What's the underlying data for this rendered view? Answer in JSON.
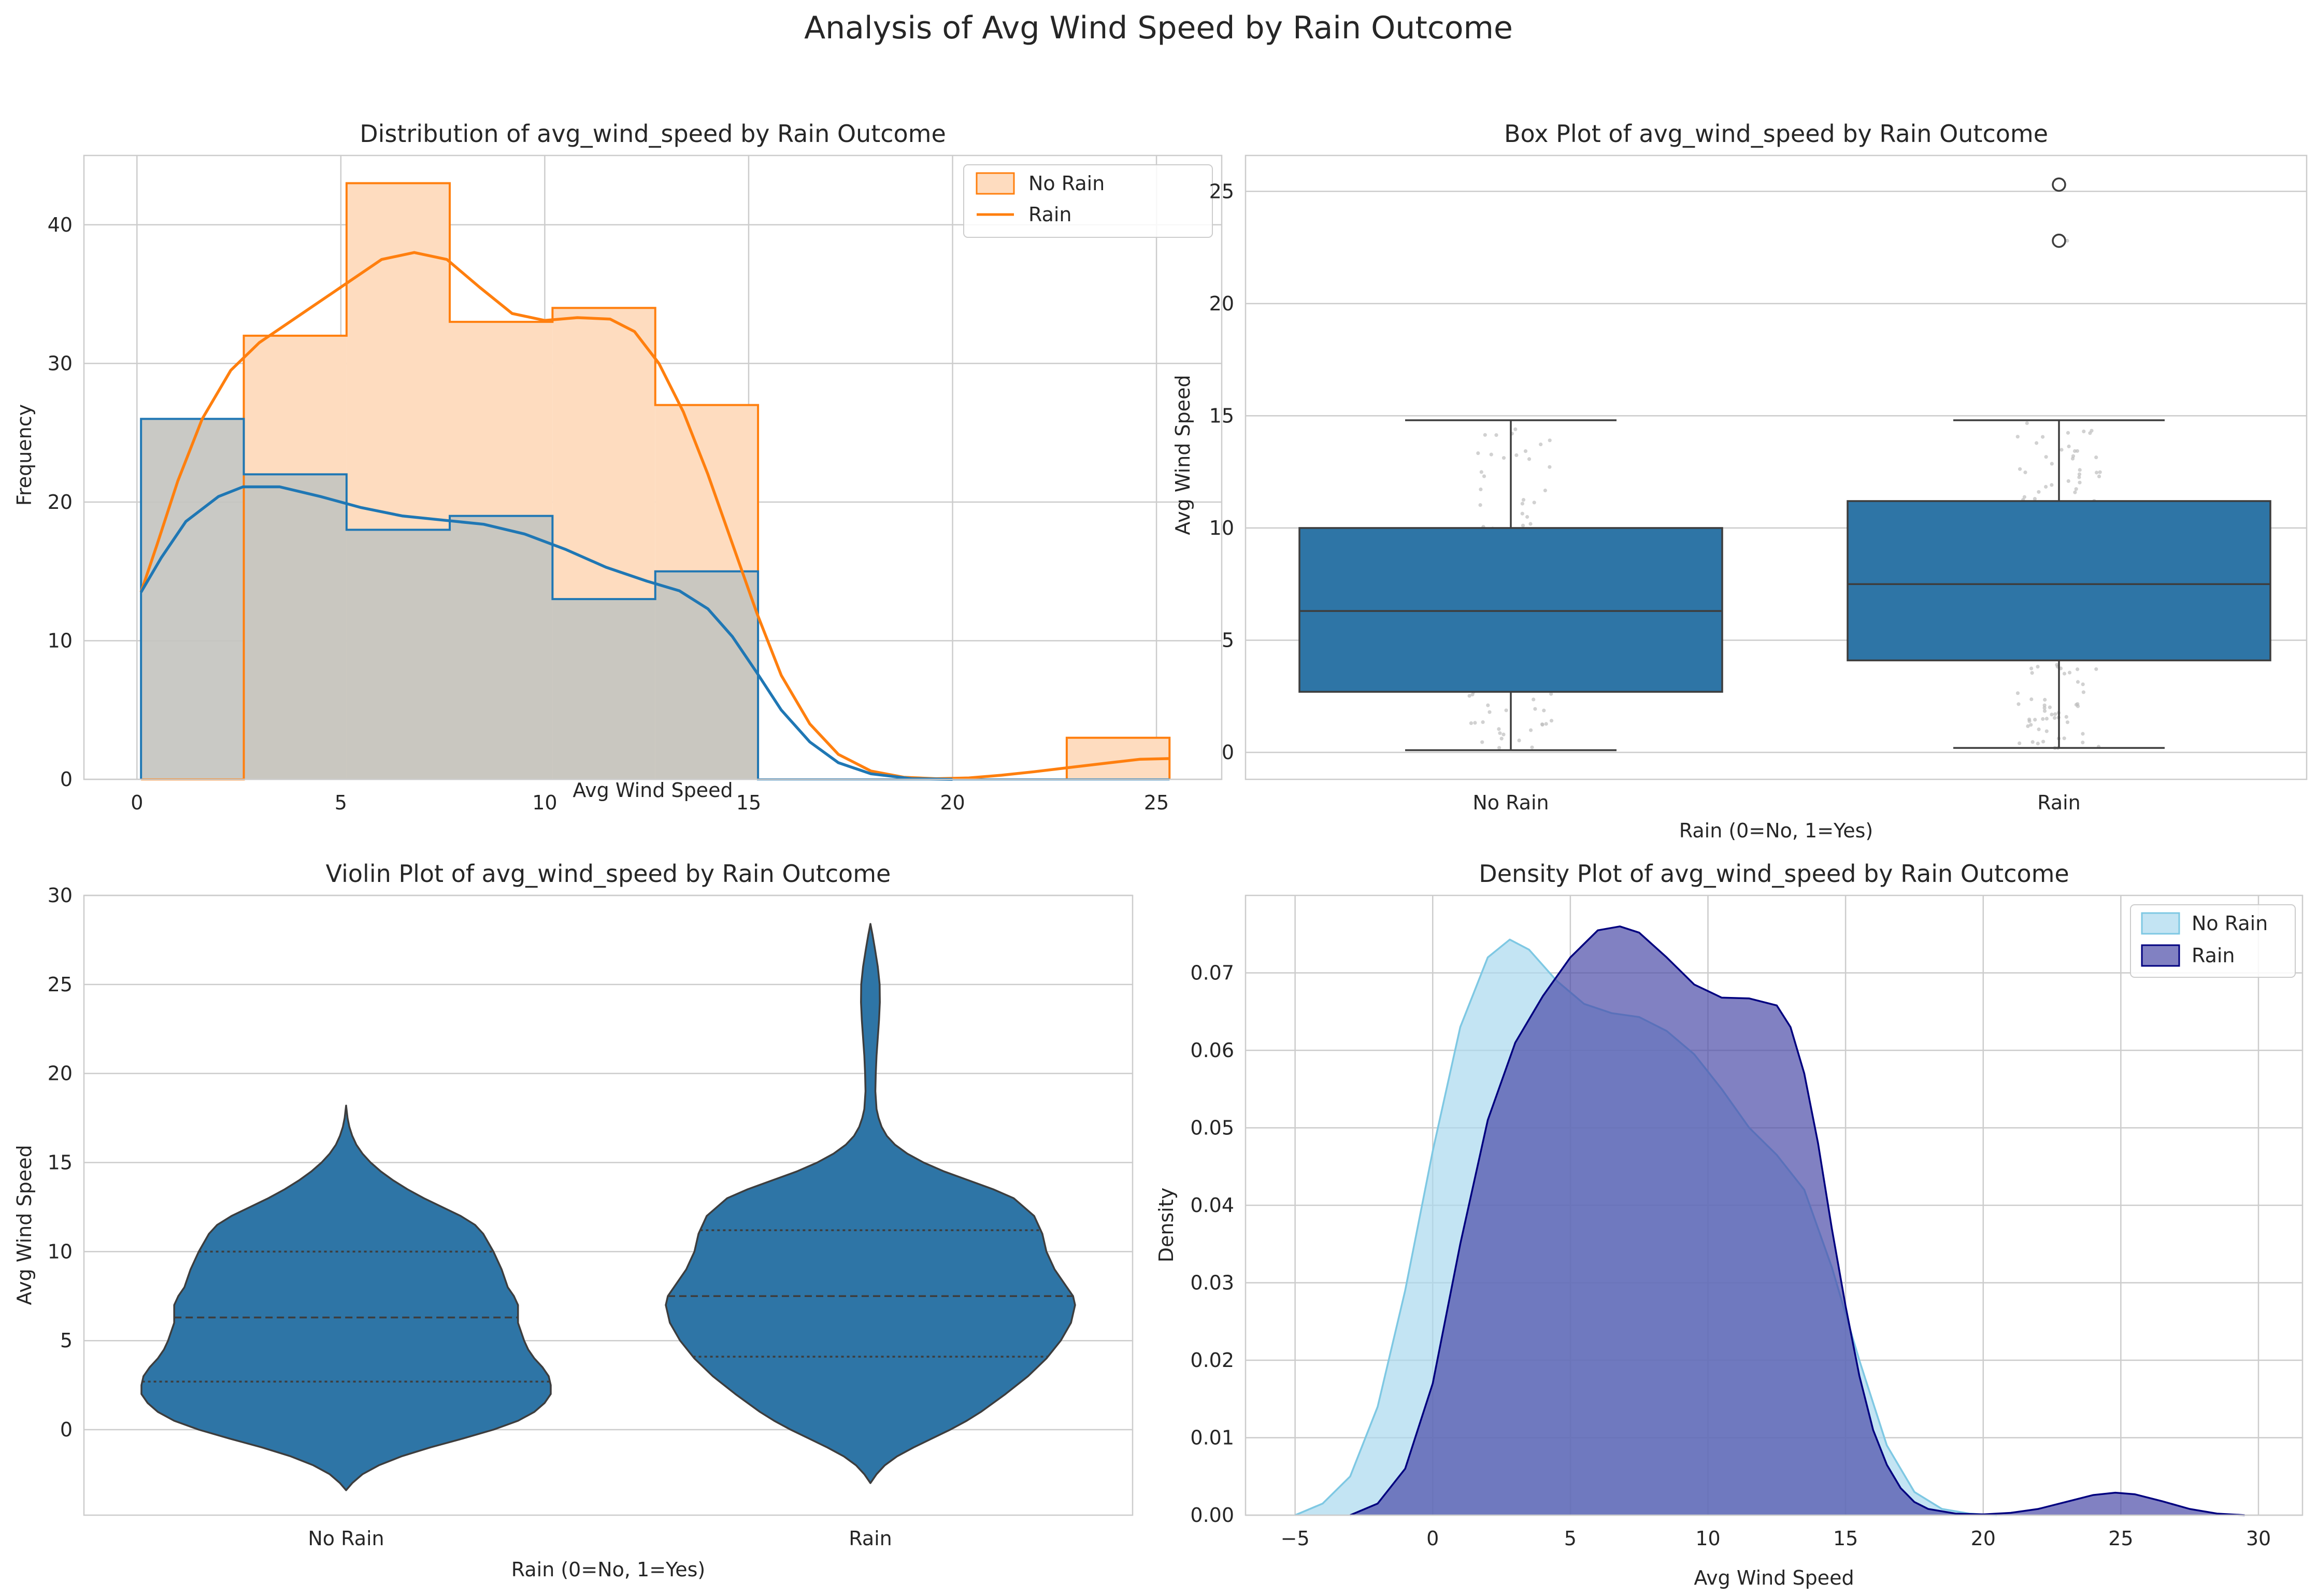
{
  "suptitle": "Analysis of Avg Wind Speed by Rain Outcome",
  "chart_data": [
    {
      "id": "hist",
      "type": "histogram",
      "title": "Distribution of avg_wind_speed by Rain Outcome",
      "xlabel": "Avg Wind Speed",
      "ylabel": "Frequency",
      "xlim": [
        -1.3,
        26.6
      ],
      "ylim": [
        0,
        45
      ],
      "xticks": [
        0,
        5,
        10,
        15,
        20,
        25
      ],
      "yticks": [
        0,
        10,
        20,
        30,
        40
      ],
      "grid": true,
      "legend": "top-right",
      "bin_edges": [
        0.1,
        2.62,
        5.14,
        7.67,
        10.19,
        12.71,
        15.23,
        17.76,
        20.28,
        22.8,
        25.32
      ],
      "series": [
        {
          "name": "No Rain",
          "counts": [
            26,
            22,
            18,
            19,
            13,
            15,
            0,
            0,
            0,
            0
          ],
          "color": "#1f77b4",
          "fill": "#c4c4c0",
          "kde": [
            [
              0.1,
              13.5
            ],
            [
              0.6,
              16
            ],
            [
              1.2,
              18.6
            ],
            [
              2,
              20.4
            ],
            [
              2.6,
              21.1
            ],
            [
              3.5,
              21.1
            ],
            [
              4.5,
              20.4
            ],
            [
              5.5,
              19.6
            ],
            [
              6.5,
              19
            ],
            [
              7.5,
              18.7
            ],
            [
              8.5,
              18.4
            ],
            [
              9.5,
              17.7
            ],
            [
              10.5,
              16.6
            ],
            [
              11.5,
              15.3
            ],
            [
              12.5,
              14.3
            ],
            [
              13.3,
              13.6
            ],
            [
              14,
              12.3
            ],
            [
              14.6,
              10.3
            ],
            [
              15.2,
              7.7
            ],
            [
              15.8,
              5
            ],
            [
              16.5,
              2.7
            ],
            [
              17.2,
              1.2
            ],
            [
              18,
              0.4
            ],
            [
              19,
              0.05
            ],
            [
              20,
              0
            ]
          ]
        },
        {
          "name": "Rain",
          "counts": [
            0,
            32,
            43,
            33,
            34,
            27,
            0,
            0,
            0,
            3
          ],
          "color": "#ff7f0e",
          "fill": "#fedcbf",
          "kde": [
            [
              0.1,
              13.5
            ],
            [
              0.5,
              17
            ],
            [
              1,
              21.5
            ],
            [
              1.6,
              26
            ],
            [
              2.3,
              29.5
            ],
            [
              3,
              31.5
            ],
            [
              4,
              33.5
            ],
            [
              5,
              35.5
            ],
            [
              6,
              37.5
            ],
            [
              6.8,
              38
            ],
            [
              7.6,
              37.5
            ],
            [
              8.4,
              35.5
            ],
            [
              9.2,
              33.6
            ],
            [
              10,
              33.1
            ],
            [
              10.8,
              33.3
            ],
            [
              11.6,
              33.2
            ],
            [
              12.2,
              32.3
            ],
            [
              12.8,
              30
            ],
            [
              13.4,
              26.5
            ],
            [
              14,
              22
            ],
            [
              14.6,
              17
            ],
            [
              15.2,
              12
            ],
            [
              15.8,
              7.5
            ],
            [
              16.5,
              4
            ],
            [
              17.2,
              1.8
            ],
            [
              18,
              0.6
            ],
            [
              18.8,
              0.15
            ],
            [
              19.6,
              0.05
            ],
            [
              20.4,
              0.1
            ],
            [
              21.2,
              0.3
            ],
            [
              22,
              0.55
            ],
            [
              23,
              0.9
            ],
            [
              24,
              1.25
            ],
            [
              24.6,
              1.45
            ],
            [
              25.32,
              1.5
            ]
          ]
        }
      ]
    },
    {
      "id": "box",
      "type": "box",
      "title": "Box Plot of avg_wind_speed by Rain Outcome",
      "xlabel": "Rain (0=No, 1=Yes)",
      "ylabel": "Avg Wind Speed",
      "categories": [
        "No Rain",
        "Rain"
      ],
      "ylim": [
        -1.2,
        26.6
      ],
      "yticks": [
        0,
        5,
        10,
        15,
        20,
        25
      ],
      "grid": true,
      "color": "#2e75a6",
      "boxes": [
        {
          "whisker_low": 0.1,
          "q1": 2.7,
          "median": 6.3,
          "q3": 10,
          "whisker_high": 14.8,
          "outliers": []
        },
        {
          "whisker_low": 0.2,
          "q1": 4.1,
          "median": 7.5,
          "q3": 11.2,
          "whisker_high": 14.8,
          "outliers": [
            22.8,
            25.3
          ]
        }
      ]
    },
    {
      "id": "violin",
      "type": "violin",
      "title": "Violin Plot of avg_wind_speed by Rain Outcome",
      "xlabel": "Rain (0=No, 1=Yes)",
      "ylabel": "Avg Wind Speed",
      "categories": [
        "No Rain",
        "Rain"
      ],
      "ylim": [
        -4.8,
        30
      ],
      "yticks": [
        0,
        5,
        10,
        15,
        20,
        25,
        30
      ],
      "grid": true,
      "color": "#2e75a6",
      "violins": [
        {
          "quartiles": [
            2.7,
            6.3,
            10
          ],
          "halfwidth": [
            [
              -3.4,
              0
            ],
            [
              -3,
              0.03
            ],
            [
              -2.5,
              0.08
            ],
            [
              -2,
              0.16
            ],
            [
              -1.5,
              0.27
            ],
            [
              -1,
              0.41
            ],
            [
              -0.5,
              0.57
            ],
            [
              0,
              0.72
            ],
            [
              0.5,
              0.84
            ],
            [
              1,
              0.92
            ],
            [
              1.5,
              0.97
            ],
            [
              2,
              1
            ],
            [
              2.5,
              1
            ],
            [
              3,
              0.99
            ],
            [
              3.5,
              0.96
            ],
            [
              4,
              0.92
            ],
            [
              4.5,
              0.89
            ],
            [
              5,
              0.87
            ],
            [
              6,
              0.84
            ],
            [
              7,
              0.84
            ],
            [
              7.5,
              0.82
            ],
            [
              8,
              0.79
            ],
            [
              9,
              0.76
            ],
            [
              10,
              0.72
            ],
            [
              11,
              0.67
            ],
            [
              11.5,
              0.63
            ],
            [
              12,
              0.56
            ],
            [
              12.5,
              0.47
            ],
            [
              13,
              0.38
            ],
            [
              13.5,
              0.3
            ],
            [
              14,
              0.23
            ],
            [
              14.5,
              0.17
            ],
            [
              15,
              0.12
            ],
            [
              15.5,
              0.08
            ],
            [
              16,
              0.05
            ],
            [
              16.5,
              0.03
            ],
            [
              17,
              0.016
            ],
            [
              17.5,
              0.007
            ],
            [
              18,
              0.002
            ],
            [
              18.2,
              0
            ]
          ]
        },
        {
          "quartiles": [
            4.1,
            7.5,
            11.2
          ],
          "halfwidth": [
            [
              -3,
              0
            ],
            [
              -2.5,
              0.03
            ],
            [
              -2,
              0.07
            ],
            [
              -1.5,
              0.13
            ],
            [
              -1,
              0.21
            ],
            [
              -0.5,
              0.3
            ],
            [
              0,
              0.39
            ],
            [
              0.5,
              0.47
            ],
            [
              1,
              0.54
            ],
            [
              2,
              0.66
            ],
            [
              3,
              0.77
            ],
            [
              4,
              0.86
            ],
            [
              5,
              0.93
            ],
            [
              6,
              0.98
            ],
            [
              7,
              1
            ],
            [
              7.5,
              0.99
            ],
            [
              8,
              0.96
            ],
            [
              9,
              0.9
            ],
            [
              10,
              0.86
            ],
            [
              11,
              0.84
            ],
            [
              12,
              0.8
            ],
            [
              13,
              0.7
            ],
            [
              13.5,
              0.6
            ],
            [
              14,
              0.48
            ],
            [
              14.5,
              0.36
            ],
            [
              15,
              0.26
            ],
            [
              15.5,
              0.18
            ],
            [
              16,
              0.12
            ],
            [
              16.5,
              0.08
            ],
            [
              17,
              0.055
            ],
            [
              17.5,
              0.04
            ],
            [
              18,
              0.03
            ],
            [
              19,
              0.024
            ],
            [
              20,
              0.026
            ],
            [
              21,
              0.03
            ],
            [
              22,
              0.036
            ],
            [
              23,
              0.042
            ],
            [
              24,
              0.046
            ],
            [
              25,
              0.045
            ],
            [
              26,
              0.036
            ],
            [
              27,
              0.022
            ],
            [
              27.8,
              0.01
            ],
            [
              28.4,
              0
            ]
          ]
        }
      ]
    },
    {
      "id": "density",
      "type": "area",
      "title": "Density Plot of avg_wind_speed by Rain Outcome",
      "xlabel": "Avg Wind Speed",
      "ylabel": "Density",
      "xlim": [
        -6.8,
        31.6
      ],
      "ylim": [
        0,
        0.08
      ],
      "xticks": [
        -5,
        0,
        5,
        10,
        15,
        20,
        25,
        30
      ],
      "yticks": [
        0,
        0.01,
        0.02,
        0.03,
        0.04,
        0.05,
        0.06,
        0.07
      ],
      "grid": true,
      "legend": "top-right",
      "series": [
        {
          "name": "No Rain",
          "fill": "#a9d8ee",
          "stroke": "#7ec8e3",
          "points": [
            [
              -5,
              0
            ],
            [
              -4,
              0.0015
            ],
            [
              -3,
              0.005
            ],
            [
              -2,
              0.014
            ],
            [
              -1,
              0.029
            ],
            [
              0,
              0.047
            ],
            [
              1,
              0.063
            ],
            [
              2,
              0.072
            ],
            [
              2.8,
              0.0743
            ],
            [
              3.5,
              0.073
            ],
            [
              4.5,
              0.069
            ],
            [
              5.5,
              0.066
            ],
            [
              6.5,
              0.0648
            ],
            [
              7.5,
              0.0643
            ],
            [
              8.5,
              0.0625
            ],
            [
              9.5,
              0.0595
            ],
            [
              10.5,
              0.055
            ],
            [
              11.5,
              0.05
            ],
            [
              12.5,
              0.0465
            ],
            [
              13.5,
              0.042
            ],
            [
              14.5,
              0.032
            ],
            [
              15.5,
              0.02
            ],
            [
              16.5,
              0.009
            ],
            [
              17.5,
              0.003
            ],
            [
              18.5,
              0.0008
            ],
            [
              19.5,
              0.0002
            ],
            [
              20.5,
              0
            ]
          ]
        },
        {
          "name": "Rain",
          "fill": "#4b4ba8",
          "stroke": "#00007f",
          "points": [
            [
              -3,
              0
            ],
            [
              -2,
              0.0015
            ],
            [
              -1,
              0.006
            ],
            [
              0,
              0.017
            ],
            [
              1,
              0.035
            ],
            [
              2,
              0.051
            ],
            [
              3,
              0.061
            ],
            [
              4,
              0.067
            ],
            [
              5,
              0.072
            ],
            [
              6,
              0.0755
            ],
            [
              6.8,
              0.076
            ],
            [
              7.5,
              0.0752
            ],
            [
              8.5,
              0.072
            ],
            [
              9.5,
              0.0685
            ],
            [
              10.5,
              0.0668
            ],
            [
              11.5,
              0.0667
            ],
            [
              12.5,
              0.0658
            ],
            [
              13,
              0.063
            ],
            [
              13.5,
              0.057
            ],
            [
              14,
              0.048
            ],
            [
              14.5,
              0.037
            ],
            [
              15,
              0.027
            ],
            [
              15.5,
              0.018
            ],
            [
              16,
              0.011
            ],
            [
              16.5,
              0.0065
            ],
            [
              17,
              0.0035
            ],
            [
              17.5,
              0.0017
            ],
            [
              18,
              0.0008
            ],
            [
              19,
              0.0002
            ],
            [
              20,
              0.0001
            ],
            [
              21,
              0.0003
            ],
            [
              22,
              0.0008
            ],
            [
              23,
              0.0017
            ],
            [
              24,
              0.0026
            ],
            [
              24.8,
              0.0029
            ],
            [
              25.5,
              0.0027
            ],
            [
              26.5,
              0.0018
            ],
            [
              27.5,
              0.0008
            ],
            [
              28.5,
              0.0002
            ],
            [
              29.5,
              0
            ]
          ]
        }
      ]
    }
  ]
}
